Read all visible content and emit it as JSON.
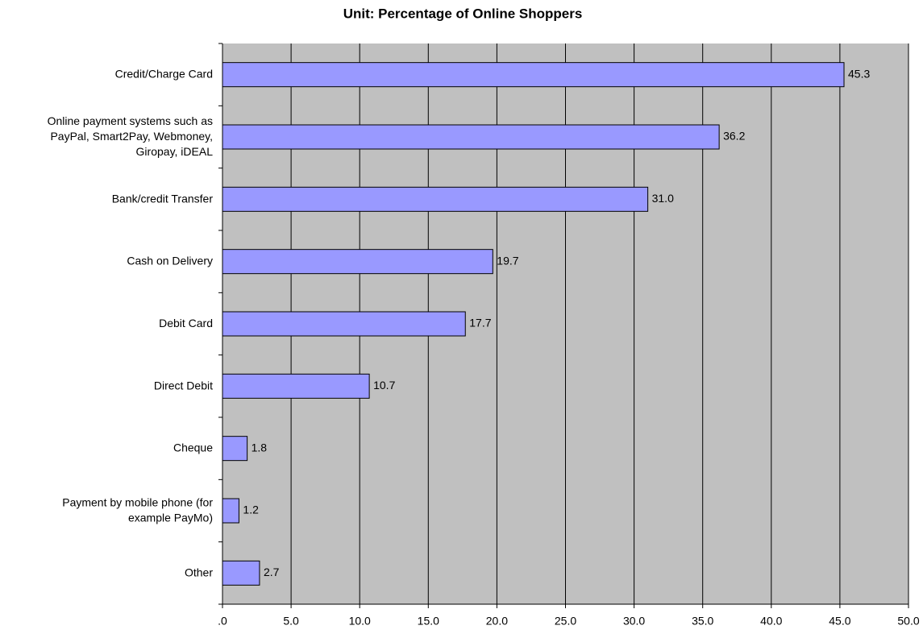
{
  "chart_data": {
    "type": "hbar",
    "title": "Unit: Percentage of Online Shoppers",
    "categories": [
      "Credit/Charge Card",
      "Online payment systems such as\nPayPal, Smart2Pay, Webmoney,\nGiropay, iDEAL",
      "Bank/credit Transfer",
      "Cash on Delivery",
      "Debit Card",
      "Direct Debit",
      "Cheque",
      "Payment by mobile phone (for\nexample PayMo)",
      "Other"
    ],
    "values": [
      45.3,
      36.2,
      31.0,
      19.7,
      17.7,
      10.7,
      1.8,
      1.2,
      2.7
    ],
    "value_labels": [
      "45.3",
      "36.2",
      "31.0",
      "19.7",
      "17.7",
      "10.7",
      "1.8",
      "1.2",
      "2.7"
    ],
    "color": "#9999ff",
    "xlim": [
      0,
      50
    ],
    "xticks": [
      {
        "value": 0,
        "label": ".0"
      },
      {
        "value": 5,
        "label": "5.0"
      },
      {
        "value": 10,
        "label": "10.0"
      },
      {
        "value": 15,
        "label": "15.0"
      },
      {
        "value": 20,
        "label": "20.0"
      },
      {
        "value": 25,
        "label": "25.0"
      },
      {
        "value": 30,
        "label": "30.0"
      },
      {
        "value": 35,
        "label": "35.0"
      },
      {
        "value": 40,
        "label": "40.0"
      },
      {
        "value": 45,
        "label": "45.0"
      },
      {
        "value": 50,
        "label": "50.0"
      }
    ],
    "grid": true
  }
}
